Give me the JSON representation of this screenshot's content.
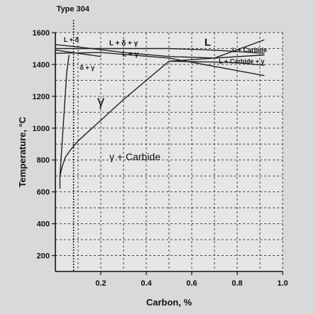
{
  "chart_data": {
    "type": "line",
    "title": "",
    "xlabel": "Carbon, %",
    "ylabel": "Temperature, °C",
    "xlim": [
      0,
      1.0
    ],
    "ylim": [
      100,
      1600
    ],
    "x_ticks": [
      "0.2",
      "0.4",
      "0.6",
      "0.8",
      "1.0"
    ],
    "y_ticks": [
      "200",
      "400",
      "600",
      "800",
      "1000",
      "1200",
      "1400",
      "1600"
    ],
    "grid": true,
    "reference_line": {
      "x": 0.08,
      "label": "Type 304"
    },
    "series": [
      {
        "x": [
          0.0,
          0.5,
          0.7,
          0.92
        ],
        "y": [
          1500,
          1500,
          1490,
          1470
        ]
      },
      {
        "x": [
          0.0,
          0.2,
          0.5,
          0.92
        ],
        "y": [
          1470,
          1475,
          1440,
          1330
        ]
      },
      {
        "x": [
          0.0,
          0.1,
          0.3,
          0.5,
          0.7,
          0.92
        ],
        "y": [
          1525,
          1510,
          1475,
          1450,
          1440,
          1460
        ]
      },
      {
        "x": [
          0.0,
          0.1,
          0.2
        ],
        "y": [
          1490,
          1470,
          1450
        ]
      },
      {
        "x": [
          0.5,
          0.7,
          0.92
        ],
        "y": [
          1420,
          1440,
          1555
        ]
      },
      {
        "x": [
          0.02,
          0.03,
          0.045,
          0.07,
          0.1,
          0.2,
          0.3,
          0.5
        ],
        "y": [
          700,
          760,
          820,
          870,
          920,
          1050,
          1180,
          1420
        ]
      },
      {
        "x": [
          0.02,
          0.02,
          0.05,
          0.06
        ],
        "y": [
          620,
          700,
          1350,
          1460
        ]
      },
      {
        "x": [
          0.5,
          0.6,
          0.7,
          0.8,
          0.92
        ],
        "y": [
          1420,
          1418,
          1415,
          1410,
          1395
        ]
      }
    ],
    "regions": [
      {
        "label": "L + δ",
        "x": 0.07,
        "y": 1555
      },
      {
        "label": "L + δ + γ",
        "x": 0.3,
        "y": 1535
      },
      {
        "label": "L",
        "x": 0.67,
        "y": 1540
      },
      {
        "label": "L + γ",
        "x": 0.33,
        "y": 1465
      },
      {
        "label": "L + Carbide",
        "x": 0.855,
        "y": 1490
      },
      {
        "label": "δ + γ",
        "x": 0.14,
        "y": 1380
      },
      {
        "label": "L + Carbide + γ",
        "x": 0.82,
        "y": 1420
      },
      {
        "label": "γ",
        "x": 0.2,
        "y": 1170
      },
      {
        "label": "γ + Carbide",
        "x": 0.35,
        "y": 820
      }
    ]
  }
}
